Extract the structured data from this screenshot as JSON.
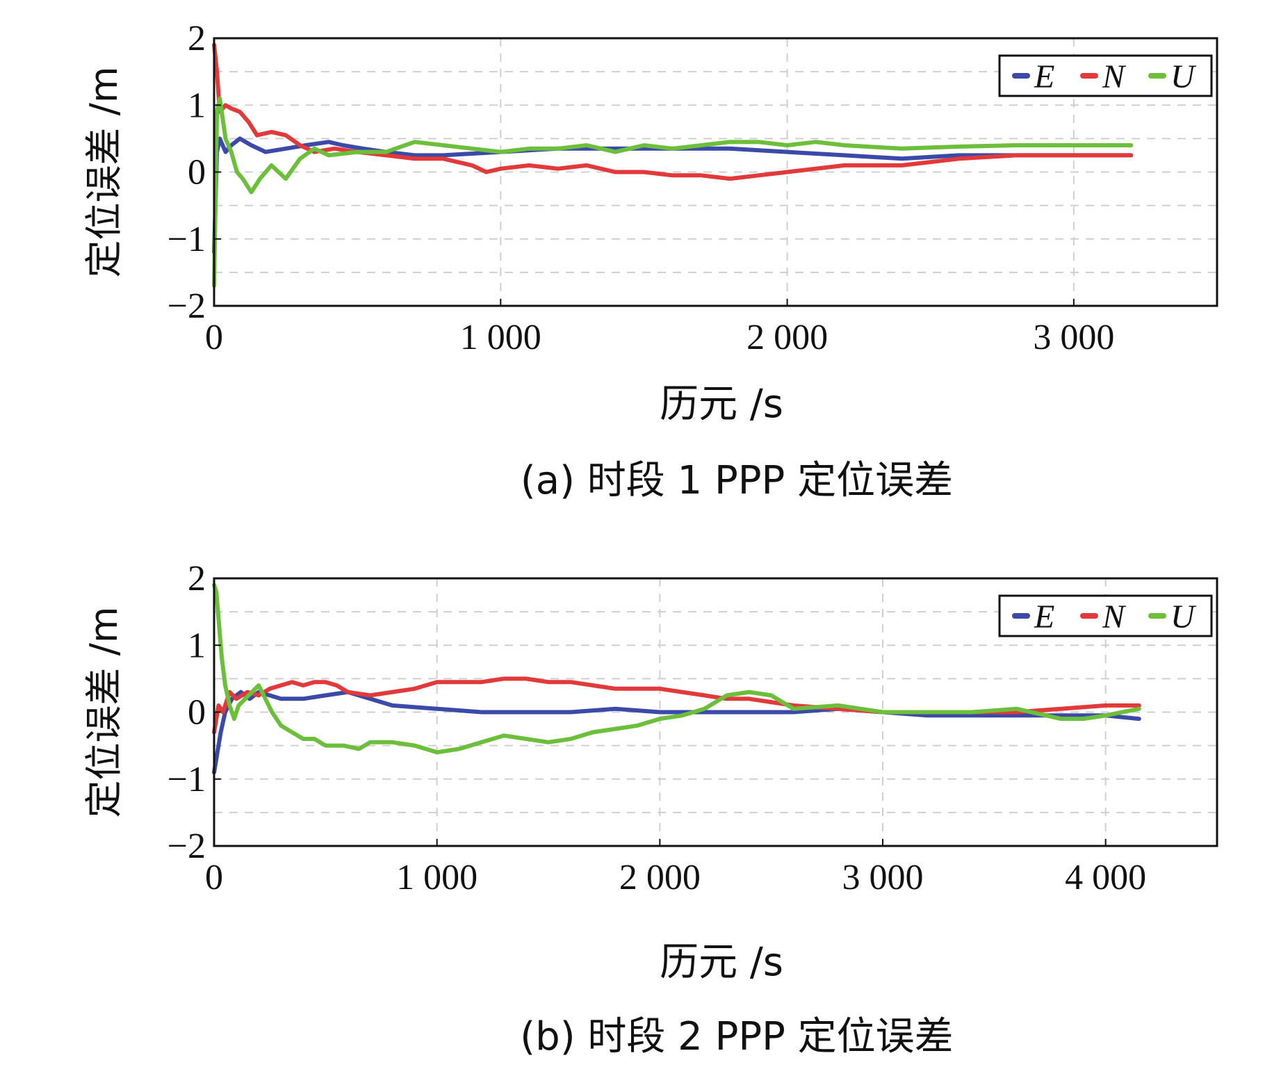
{
  "colors": {
    "E": "#3b4aa8",
    "N": "#e23a3a",
    "U": "#6cbf3a",
    "grid": "#cfcfcf",
    "frame": "#111111"
  },
  "chart_data": [
    {
      "type": "line",
      "caption": "(a) 时段 1 PPP 定位误差",
      "xlabel": "历元 /s",
      "ylabel": "定位误差 /m",
      "xlim": [
        0,
        3500
      ],
      "ylim": [
        -2,
        2
      ],
      "xticks": [
        0,
        1000,
        2000,
        3000
      ],
      "xtick_labels": [
        "0",
        "1 000",
        "2 000",
        "3 000"
      ],
      "yticks": [
        2,
        1,
        0,
        -1,
        -2
      ],
      "ytick_labels": [
        "2",
        "1",
        "0",
        "−1",
        "−2"
      ],
      "grid": true,
      "legend": "top-right",
      "series": [
        {
          "name": "E",
          "x": [
            0,
            10,
            20,
            40,
            60,
            90,
            130,
            180,
            250,
            320,
            400,
            450,
            520,
            600,
            700,
            800,
            1000,
            1200,
            1400,
            1600,
            1800,
            2000,
            2200,
            2400,
            2600,
            2800,
            3000,
            3200
          ],
          "values": [
            -1.2,
            0.3,
            0.5,
            0.3,
            0.4,
            0.5,
            0.4,
            0.3,
            0.35,
            0.4,
            0.45,
            0.4,
            0.35,
            0.3,
            0.25,
            0.25,
            0.3,
            0.35,
            0.35,
            0.35,
            0.35,
            0.3,
            0.25,
            0.2,
            0.25,
            0.25,
            0.25,
            0.25
          ]
        },
        {
          "name": "N",
          "x": [
            0,
            10,
            20,
            40,
            60,
            90,
            120,
            150,
            200,
            250,
            300,
            350,
            420,
            500,
            600,
            700,
            800,
            900,
            950,
            1000,
            1100,
            1200,
            1300,
            1400,
            1500,
            1600,
            1700,
            1800,
            1900,
            2000,
            2200,
            2400,
            2600,
            2800,
            3000,
            3200
          ],
          "values": [
            1.9,
            1.5,
            0.9,
            1.0,
            0.95,
            0.9,
            0.75,
            0.55,
            0.6,
            0.55,
            0.4,
            0.3,
            0.35,
            0.3,
            0.25,
            0.2,
            0.2,
            0.1,
            0.0,
            0.05,
            0.1,
            0.05,
            0.1,
            0.0,
            0.0,
            -0.05,
            -0.05,
            -0.1,
            -0.05,
            0.0,
            0.1,
            0.1,
            0.2,
            0.25,
            0.25,
            0.25
          ]
        },
        {
          "name": "U",
          "x": [
            0,
            10,
            20,
            30,
            40,
            60,
            80,
            100,
            130,
            160,
            200,
            250,
            300,
            350,
            400,
            500,
            600,
            700,
            800,
            900,
            1000,
            1100,
            1200,
            1300,
            1400,
            1500,
            1600,
            1700,
            1800,
            1900,
            2000,
            2100,
            2200,
            2400,
            2600,
            2800,
            3000,
            3200
          ],
          "values": [
            -1.7,
            0.9,
            1.1,
            0.8,
            0.5,
            0.3,
            0.0,
            -0.1,
            -0.3,
            -0.1,
            0.1,
            -0.1,
            0.2,
            0.35,
            0.25,
            0.3,
            0.3,
            0.45,
            0.4,
            0.35,
            0.3,
            0.35,
            0.35,
            0.4,
            0.3,
            0.4,
            0.35,
            0.4,
            0.45,
            0.45,
            0.4,
            0.45,
            0.4,
            0.35,
            0.38,
            0.4,
            0.4,
            0.4
          ]
        }
      ]
    },
    {
      "type": "line",
      "caption": "(b) 时段 2 PPP 定位误差",
      "xlabel": "历元 /s",
      "ylabel": "定位误差 /m",
      "xlim": [
        0,
        4500
      ],
      "ylim": [
        -2,
        2
      ],
      "xticks": [
        0,
        1000,
        2000,
        3000,
        4000
      ],
      "xtick_labels": [
        "0",
        "1 000",
        "2 000",
        "3 000",
        "4 000"
      ],
      "yticks": [
        2,
        1,
        0,
        -1,
        -2
      ],
      "ytick_labels": [
        "2",
        "1",
        "0",
        "−1",
        "−2"
      ],
      "grid": true,
      "legend": "top-right",
      "series": [
        {
          "name": "E",
          "x": [
            0,
            15,
            30,
            50,
            80,
            120,
            160,
            200,
            300,
            400,
            500,
            600,
            700,
            800,
            1000,
            1200,
            1400,
            1600,
            1800,
            2000,
            2200,
            2400,
            2600,
            2800,
            3000,
            3200,
            3400,
            3600,
            3800,
            4000,
            4150
          ],
          "values": [
            -0.9,
            -0.6,
            -0.3,
            0.0,
            0.2,
            0.3,
            0.2,
            0.3,
            0.2,
            0.2,
            0.25,
            0.3,
            0.2,
            0.1,
            0.05,
            0.0,
            0.0,
            0.0,
            0.05,
            0.0,
            0.0,
            0.0,
            0.0,
            0.05,
            0.0,
            -0.05,
            -0.05,
            -0.05,
            -0.05,
            -0.05,
            -0.1
          ]
        },
        {
          "name": "N",
          "x": [
            0,
            20,
            40,
            70,
            100,
            150,
            200,
            250,
            300,
            350,
            400,
            450,
            500,
            550,
            600,
            700,
            800,
            900,
            1000,
            1100,
            1200,
            1300,
            1400,
            1500,
            1600,
            1700,
            1800,
            1900,
            2000,
            2100,
            2200,
            2300,
            2400,
            2500,
            2600,
            2800,
            3000,
            3200,
            3400,
            3600,
            3800,
            4000,
            4150
          ],
          "values": [
            -0.3,
            0.1,
            0.0,
            0.3,
            0.2,
            0.3,
            0.25,
            0.35,
            0.4,
            0.45,
            0.4,
            0.45,
            0.45,
            0.4,
            0.3,
            0.25,
            0.3,
            0.35,
            0.45,
            0.45,
            0.45,
            0.5,
            0.5,
            0.45,
            0.45,
            0.4,
            0.35,
            0.35,
            0.35,
            0.3,
            0.25,
            0.2,
            0.2,
            0.15,
            0.1,
            0.05,
            0.0,
            0.0,
            0.0,
            0.0,
            0.05,
            0.1,
            0.1
          ]
        },
        {
          "name": "U",
          "x": [
            0,
            10,
            20,
            35,
            50,
            70,
            90,
            110,
            140,
            170,
            200,
            230,
            260,
            300,
            350,
            400,
            450,
            500,
            580,
            650,
            700,
            800,
            900,
            1000,
            1100,
            1200,
            1300,
            1400,
            1500,
            1600,
            1700,
            1800,
            1900,
            2000,
            2100,
            2200,
            2300,
            2400,
            2500,
            2600,
            2800,
            3000,
            3200,
            3400,
            3600,
            3800,
            3900,
            4000,
            4150
          ],
          "values": [
            1.9,
            1.8,
            1.4,
            0.8,
            0.4,
            0.1,
            -0.1,
            0.1,
            0.2,
            0.3,
            0.4,
            0.2,
            0.0,
            -0.2,
            -0.3,
            -0.4,
            -0.4,
            -0.5,
            -0.5,
            -0.55,
            -0.45,
            -0.45,
            -0.5,
            -0.6,
            -0.55,
            -0.45,
            -0.35,
            -0.4,
            -0.45,
            -0.4,
            -0.3,
            -0.25,
            -0.2,
            -0.1,
            -0.05,
            0.05,
            0.25,
            0.3,
            0.25,
            0.05,
            0.1,
            0.0,
            0.0,
            0.0,
            0.05,
            -0.1,
            -0.1,
            -0.05,
            0.05
          ]
        }
      ]
    }
  ]
}
